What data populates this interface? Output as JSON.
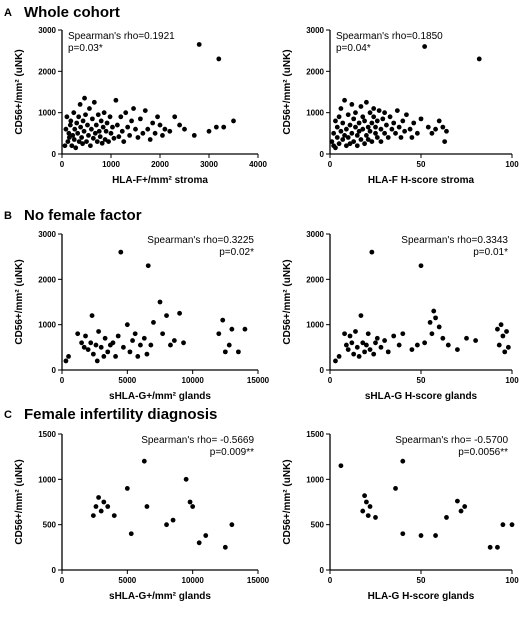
{
  "sections": [
    {
      "letter": "A",
      "title": "Whole cohort"
    },
    {
      "letter": "B",
      "title": "No female factor"
    },
    {
      "letter": "C",
      "title": "Female infertility diagnosis"
    }
  ],
  "chart_data": [
    {
      "type": "scatter",
      "section": "A",
      "xlabel": "HLA-F+/mm² stroma",
      "ylabel": "CD56+/mm² (uNK)",
      "xlim": [
        0,
        4000
      ],
      "ylim": [
        0,
        3000
      ],
      "xticks": [
        0,
        1000,
        2000,
        3000,
        4000
      ],
      "yticks": [
        0,
        1000,
        2000,
        3000
      ],
      "annotations": [
        "Spearman's rho=0.1921",
        "p=0.03*"
      ],
      "annotation_align": "left",
      "points": [
        [
          60,
          200
        ],
        [
          80,
          600
        ],
        [
          100,
          900
        ],
        [
          120,
          300
        ],
        [
          140,
          500
        ],
        [
          150,
          400
        ],
        [
          170,
          700
        ],
        [
          180,
          800
        ],
        [
          200,
          200
        ],
        [
          220,
          450
        ],
        [
          240,
          1000
        ],
        [
          250,
          350
        ],
        [
          260,
          600
        ],
        [
          280,
          150
        ],
        [
          300,
          750
        ],
        [
          320,
          500
        ],
        [
          340,
          900
        ],
        [
          350,
          300
        ],
        [
          370,
          1200
        ],
        [
          380,
          650
        ],
        [
          400,
          400
        ],
        [
          420,
          250
        ],
        [
          430,
          800
        ],
        [
          450,
          550
        ],
        [
          460,
          1350
        ],
        [
          480,
          950
        ],
        [
          500,
          300
        ],
        [
          520,
          700
        ],
        [
          540,
          450
        ],
        [
          560,
          1100
        ],
        [
          580,
          200
        ],
        [
          600,
          600
        ],
        [
          620,
          850
        ],
        [
          640,
          380
        ],
        [
          660,
          1250
        ],
        [
          680,
          500
        ],
        [
          700,
          700
        ],
        [
          720,
          300
        ],
        [
          740,
          950
        ],
        [
          760,
          550
        ],
        [
          780,
          420
        ],
        [
          800,
          800
        ],
        [
          820,
          260
        ],
        [
          840,
          650
        ],
        [
          860,
          1000
        ],
        [
          880,
          350
        ],
        [
          900,
          550
        ],
        [
          920,
          750
        ],
        [
          950,
          300
        ],
        [
          980,
          900
        ],
        [
          1000,
          500
        ],
        [
          1030,
          650
        ],
        [
          1060,
          380
        ],
        [
          1100,
          1300
        ],
        [
          1130,
          700
        ],
        [
          1160,
          420
        ],
        [
          1200,
          900
        ],
        [
          1230,
          550
        ],
        [
          1260,
          300
        ],
        [
          1300,
          1000
        ],
        [
          1340,
          650
        ],
        [
          1380,
          450
        ],
        [
          1420,
          800
        ],
        [
          1460,
          1100
        ],
        [
          1500,
          600
        ],
        [
          1550,
          400
        ],
        [
          1600,
          850
        ],
        [
          1650,
          500
        ],
        [
          1700,
          1050
        ],
        [
          1750,
          600
        ],
        [
          1800,
          350
        ],
        [
          1850,
          750
        ],
        [
          1900,
          500
        ],
        [
          1950,
          900
        ],
        [
          2000,
          700
        ],
        [
          2050,
          450
        ],
        [
          2100,
          600
        ],
        [
          2200,
          550
        ],
        [
          2300,
          900
        ],
        [
          2400,
          700
        ],
        [
          2500,
          600
        ],
        [
          2700,
          450
        ],
        [
          2800,
          2650
        ],
        [
          3000,
          550
        ],
        [
          3150,
          650
        ],
        [
          3200,
          2300
        ],
        [
          3300,
          650
        ],
        [
          3500,
          800
        ]
      ]
    },
    {
      "type": "scatter",
      "section": "A",
      "xlabel": "HLA-F H-score stroma",
      "ylabel": "CD56+/mm² (uNK)",
      "xlim": [
        0,
        100
      ],
      "ylim": [
        0,
        3000
      ],
      "xticks": [
        0,
        50,
        100
      ],
      "yticks": [
        0,
        1000,
        2000,
        3000
      ],
      "annotations": [
        "Spearman's rho=0.1850",
        "p=0.04*"
      ],
      "annotation_align": "left",
      "points": [
        [
          1,
          300
        ],
        [
          2,
          500
        ],
        [
          2,
          200
        ],
        [
          3,
          800
        ],
        [
          3,
          150
        ],
        [
          4,
          400
        ],
        [
          4,
          650
        ],
        [
          5,
          900
        ],
        [
          5,
          250
        ],
        [
          6,
          550
        ],
        [
          6,
          1100
        ],
        [
          7,
          350
        ],
        [
          7,
          750
        ],
        [
          8,
          450
        ],
        [
          8,
          1300
        ],
        [
          9,
          200
        ],
        [
          9,
          600
        ],
        [
          10,
          950
        ],
        [
          10,
          400
        ],
        [
          11,
          700
        ],
        [
          11,
          250
        ],
        [
          12,
          1200
        ],
        [
          12,
          500
        ],
        [
          13,
          850
        ],
        [
          13,
          300
        ],
        [
          14,
          650
        ],
        [
          14,
          1000
        ],
        [
          15,
          450
        ],
        [
          15,
          200
        ],
        [
          16,
          750
        ],
        [
          16,
          550
        ],
        [
          17,
          1150
        ],
        [
          17,
          350
        ],
        [
          18,
          900
        ],
        [
          18,
          600
        ],
        [
          19,
          250
        ],
        [
          19,
          800
        ],
        [
          20,
          1250
        ],
        [
          20,
          450
        ],
        [
          21,
          650
        ],
        [
          21,
          350
        ],
        [
          22,
          1000
        ],
        [
          22,
          550
        ],
        [
          23,
          750
        ],
        [
          23,
          300
        ],
        [
          24,
          900
        ],
        [
          24,
          1100
        ],
        [
          25,
          500
        ],
        [
          25,
          650
        ],
        [
          26,
          800
        ],
        [
          26,
          400
        ],
        [
          27,
          1050
        ],
        [
          28,
          600
        ],
        [
          28,
          300
        ],
        [
          29,
          850
        ],
        [
          30,
          1000
        ],
        [
          30,
          500
        ],
        [
          31,
          700
        ],
        [
          32,
          400
        ],
        [
          33,
          900
        ],
        [
          34,
          600
        ],
        [
          35,
          750
        ],
        [
          36,
          500
        ],
        [
          37,
          1050
        ],
        [
          38,
          650
        ],
        [
          39,
          400
        ],
        [
          40,
          800
        ],
        [
          41,
          550
        ],
        [
          42,
          950
        ],
        [
          44,
          600
        ],
        [
          45,
          400
        ],
        [
          46,
          750
        ],
        [
          48,
          500
        ],
        [
          50,
          850
        ],
        [
          52,
          2600
        ],
        [
          54,
          650
        ],
        [
          56,
          500
        ],
        [
          58,
          600
        ],
        [
          60,
          800
        ],
        [
          62,
          650
        ],
        [
          63,
          300
        ],
        [
          64,
          550
        ],
        [
          82,
          2300
        ]
      ]
    },
    {
      "type": "scatter",
      "section": "B",
      "xlabel": "sHLA-G+/mm² glands",
      "ylabel": "CD56+/mm² (uNK)",
      "xlim": [
        0,
        15000
      ],
      "ylim": [
        0,
        3000
      ],
      "xticks": [
        0,
        5000,
        10000,
        15000
      ],
      "yticks": [
        0,
        1000,
        2000,
        3000
      ],
      "annotations": [
        "Spearman's rho=0.3225",
        "p=0.02*"
      ],
      "annotation_align": "right",
      "points": [
        [
          300,
          200
        ],
        [
          500,
          300
        ],
        [
          1200,
          800
        ],
        [
          1500,
          600
        ],
        [
          1700,
          500
        ],
        [
          1800,
          750
        ],
        [
          2000,
          450
        ],
        [
          2200,
          600
        ],
        [
          2300,
          1200
        ],
        [
          2400,
          350
        ],
        [
          2600,
          550
        ],
        [
          2700,
          200
        ],
        [
          2800,
          850
        ],
        [
          3000,
          500
        ],
        [
          3200,
          300
        ],
        [
          3300,
          700
        ],
        [
          3500,
          400
        ],
        [
          3700,
          550
        ],
        [
          3900,
          600
        ],
        [
          4100,
          300
        ],
        [
          4300,
          750
        ],
        [
          4500,
          2600
        ],
        [
          4700,
          500
        ],
        [
          5000,
          1000
        ],
        [
          5200,
          400
        ],
        [
          5400,
          650
        ],
        [
          5600,
          800
        ],
        [
          5800,
          300
        ],
        [
          6000,
          550
        ],
        [
          6300,
          700
        ],
        [
          6500,
          350
        ],
        [
          6600,
          2300
        ],
        [
          6800,
          550
        ],
        [
          7000,
          1050
        ],
        [
          7500,
          1500
        ],
        [
          7700,
          800
        ],
        [
          8000,
          1200
        ],
        [
          8300,
          550
        ],
        [
          8600,
          650
        ],
        [
          9000,
          1250
        ],
        [
          9300,
          600
        ],
        [
          12000,
          800
        ],
        [
          12300,
          1100
        ],
        [
          12500,
          400
        ],
        [
          12800,
          550
        ],
        [
          13000,
          900
        ],
        [
          13500,
          400
        ],
        [
          14000,
          900
        ]
      ]
    },
    {
      "type": "scatter",
      "section": "B",
      "xlabel": "sHLA-G H-score glands",
      "ylabel": "CD56+/mm² (uNK)",
      "xlim": [
        0,
        100
      ],
      "ylim": [
        0,
        3000
      ],
      "xticks": [
        0,
        50,
        100
      ],
      "yticks": [
        0,
        1000,
        2000,
        3000
      ],
      "annotations": [
        "Spearman's rho=0.3343",
        "p=0.01*"
      ],
      "annotation_align": "right",
      "points": [
        [
          3,
          200
        ],
        [
          5,
          300
        ],
        [
          8,
          800
        ],
        [
          9,
          550
        ],
        [
          10,
          450
        ],
        [
          11,
          750
        ],
        [
          12,
          600
        ],
        [
          13,
          350
        ],
        [
          14,
          850
        ],
        [
          15,
          500
        ],
        [
          16,
          300
        ],
        [
          17,
          1200
        ],
        [
          18,
          600
        ],
        [
          19,
          400
        ],
        [
          20,
          550
        ],
        [
          21,
          800
        ],
        [
          22,
          450
        ],
        [
          23,
          2600
        ],
        [
          24,
          350
        ],
        [
          25,
          600
        ],
        [
          26,
          700
        ],
        [
          28,
          500
        ],
        [
          30,
          650
        ],
        [
          32,
          400
        ],
        [
          35,
          750
        ],
        [
          38,
          550
        ],
        [
          40,
          800
        ],
        [
          45,
          450
        ],
        [
          48,
          550
        ],
        [
          50,
          2300
        ],
        [
          52,
          600
        ],
        [
          55,
          1050
        ],
        [
          56,
          800
        ],
        [
          57,
          1300
        ],
        [
          58,
          1150
        ],
        [
          60,
          950
        ],
        [
          62,
          700
        ],
        [
          65,
          550
        ],
        [
          70,
          450
        ],
        [
          75,
          700
        ],
        [
          80,
          650
        ],
        [
          92,
          900
        ],
        [
          93,
          550
        ],
        [
          94,
          1000
        ],
        [
          95,
          750
        ],
        [
          96,
          400
        ],
        [
          97,
          850
        ],
        [
          98,
          500
        ]
      ]
    },
    {
      "type": "scatter",
      "section": "C",
      "xlabel": "sHLA-G+/mm² glands",
      "ylabel": "CD56+/mm² (uNK)",
      "xlim": [
        0,
        15000
      ],
      "ylim": [
        0,
        1500
      ],
      "xticks": [
        0,
        5000,
        10000,
        15000
      ],
      "yticks": [
        0,
        500,
        1000,
        1500
      ],
      "annotations": [
        "Spearman's rho= -0.5669",
        "p=0.009**"
      ],
      "annotation_align": "right",
      "points": [
        [
          2400,
          600
        ],
        [
          2600,
          700
        ],
        [
          2800,
          800
        ],
        [
          3000,
          650
        ],
        [
          3200,
          750
        ],
        [
          3500,
          700
        ],
        [
          4000,
          600
        ],
        [
          5000,
          900
        ],
        [
          5300,
          400
        ],
        [
          6300,
          1200
        ],
        [
          6500,
          700
        ],
        [
          8000,
          500
        ],
        [
          8500,
          550
        ],
        [
          9500,
          1000
        ],
        [
          9800,
          750
        ],
        [
          10000,
          700
        ],
        [
          10500,
          300
        ],
        [
          11000,
          380
        ],
        [
          12500,
          250
        ],
        [
          13000,
          500
        ]
      ]
    },
    {
      "type": "scatter",
      "section": "C",
      "xlabel": "HLA-G H-score glands",
      "ylabel": "CD56+/mm² (uNK)",
      "xlim": [
        0,
        100
      ],
      "ylim": [
        0,
        1500
      ],
      "xticks": [
        0,
        50,
        100
      ],
      "yticks": [
        0,
        500,
        1000,
        1500
      ],
      "annotations": [
        "Spearman's rho= -0.5700",
        "p=0.0056**"
      ],
      "annotation_align": "right",
      "points": [
        [
          6,
          1150
        ],
        [
          18,
          650
        ],
        [
          19,
          820
        ],
        [
          20,
          750
        ],
        [
          21,
          600
        ],
        [
          22,
          700
        ],
        [
          25,
          580
        ],
        [
          36,
          900
        ],
        [
          40,
          1200
        ],
        [
          40,
          400
        ],
        [
          50,
          380
        ],
        [
          58,
          380
        ],
        [
          64,
          580
        ],
        [
          70,
          760
        ],
        [
          72,
          650
        ],
        [
          74,
          700
        ],
        [
          88,
          250
        ],
        [
          92,
          250
        ],
        [
          95,
          500
        ],
        [
          100,
          500
        ]
      ]
    }
  ]
}
